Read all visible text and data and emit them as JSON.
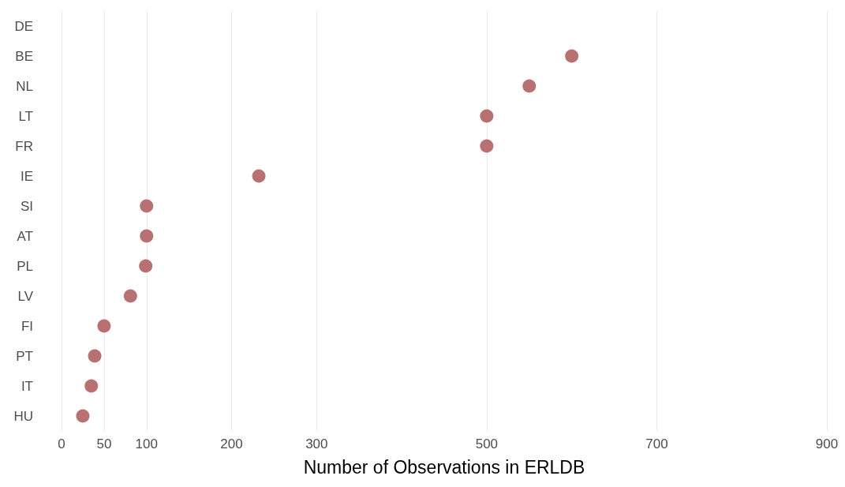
{
  "chart_data": {
    "type": "scatter",
    "orientation": "horizontal",
    "xlabel": "Number of Observations in ERLDB",
    "categories": [
      "DE",
      "BE",
      "NL",
      "LT",
      "FR",
      "IE",
      "SI",
      "AT",
      "PL",
      "LV",
      "FI",
      "PT",
      "IT",
      "HU"
    ],
    "series": [
      {
        "color": "#b87070",
        "values": [
          null,
          600,
          550,
          500,
          500,
          232,
          100,
          100,
          99,
          81,
          50,
          39,
          35,
          25
        ]
      }
    ],
    "xlim": [
      0,
      900
    ],
    "xticks": [
      0,
      50,
      100,
      200,
      300,
      500,
      700,
      900
    ],
    "grid": "x",
    "marker": "circle"
  }
}
